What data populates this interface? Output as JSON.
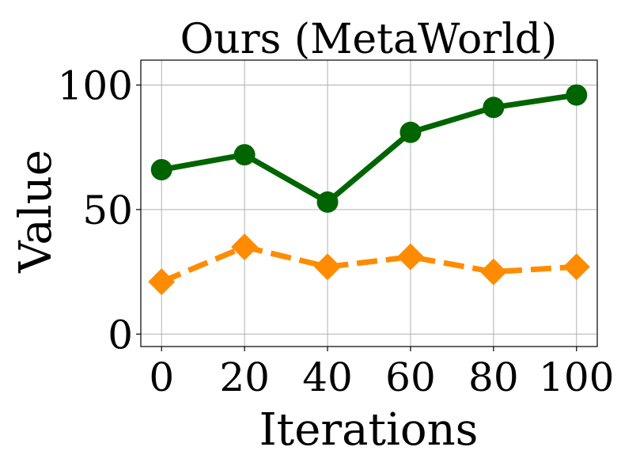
{
  "chart_data": {
    "type": "line",
    "title": "Ours (MetaWorld)",
    "xlabel": "Iterations",
    "ylabel": "Value",
    "x": [
      0,
      20,
      40,
      60,
      80,
      100
    ],
    "xticks": [
      "0",
      "20",
      "40",
      "60",
      "80",
      "100"
    ],
    "yticks": [
      "0",
      "50",
      "100"
    ],
    "xlim": [
      -5,
      105
    ],
    "ylim": [
      -5,
      110
    ],
    "grid": true,
    "series": [
      {
        "values": [
          66,
          72,
          53,
          81,
          91,
          96
        ],
        "color": "#006400",
        "linestyle": "solid",
        "marker": "circle"
      },
      {
        "values": [
          21,
          35,
          27,
          31,
          25,
          27
        ],
        "color": "#ff8c00",
        "linestyle": "dashed",
        "marker": "diamond"
      }
    ]
  }
}
